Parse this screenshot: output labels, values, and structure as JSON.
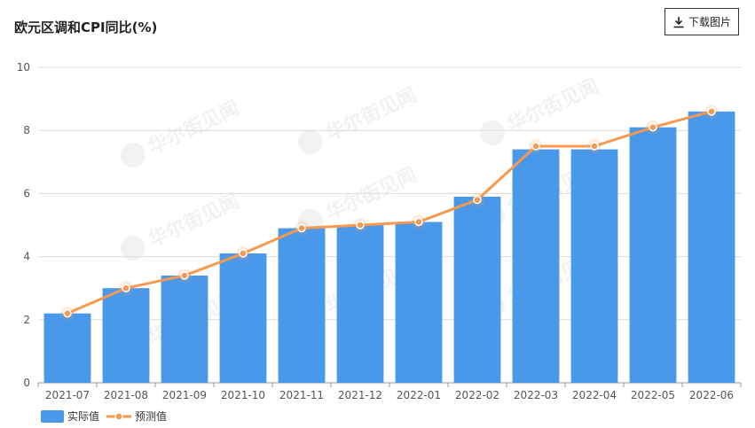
{
  "header": {
    "title": "欧元区调和CPI同比(%)",
    "download_label": "下载图片"
  },
  "watermark": {
    "text": "华尔街见闻"
  },
  "chart_data": {
    "type": "bar",
    "title": "欧元区调和CPI同比(%)",
    "categories": [
      "2021-07",
      "2021-08",
      "2021-09",
      "2021-10",
      "2021-11",
      "2021-12",
      "2022-01",
      "2022-02",
      "2022-03",
      "2022-04",
      "2022-05",
      "2022-06"
    ],
    "series": [
      {
        "name": "实际值",
        "kind": "bar",
        "color": "#4a98ea",
        "values": [
          2.2,
          3.0,
          3.4,
          4.1,
          4.9,
          5.0,
          5.1,
          5.9,
          7.4,
          7.4,
          8.1,
          8.6
        ]
      },
      {
        "name": "预测值",
        "kind": "line",
        "color": "#f7994f",
        "values": [
          2.2,
          3.0,
          3.4,
          4.1,
          4.9,
          5.0,
          5.1,
          5.8,
          7.5,
          7.5,
          8.1,
          8.6
        ]
      }
    ],
    "ylim": [
      0,
      10
    ],
    "yticks": [
      0,
      2,
      4,
      6,
      8,
      10
    ],
    "grid": true,
    "legend": "bottom-left"
  }
}
